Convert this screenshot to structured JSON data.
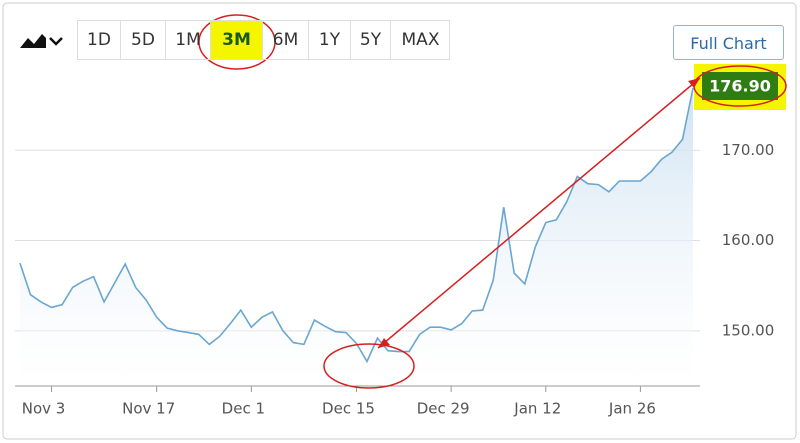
{
  "range_buttons": [
    "1D",
    "5D",
    "1M",
    "3M",
    "6M",
    "1Y",
    "5Y",
    "MAX"
  ],
  "full_chart_button": "Full Chart",
  "chart_data": {
    "type": "area",
    "categories": [
      null,
      null,
      null,
      "Nov 3",
      null,
      null,
      null,
      null,
      null,
      null,
      null,
      null,
      null,
      "Nov 17",
      null,
      null,
      null,
      null,
      null,
      null,
      null,
      null,
      "Dec 1",
      null,
      null,
      null,
      null,
      null,
      null,
      null,
      null,
      null,
      "Dec 15",
      null,
      null,
      null,
      null,
      null,
      null,
      null,
      null,
      "Dec 29",
      null,
      null,
      null,
      null,
      null,
      null,
      null,
      null,
      "Jan 12",
      null,
      null,
      null,
      null,
      null,
      null,
      null,
      null,
      "Jan 26",
      null,
      null,
      null,
      null,
      null
    ],
    "values": [
      157.5,
      154,
      153.2,
      152.6,
      152.9,
      154.8,
      155.5,
      156,
      153.2,
      155.3,
      157.4,
      154.8,
      153.4,
      151.5,
      150.3,
      150,
      149.8,
      149.6,
      148.5,
      149.4,
      150.8,
      152.3,
      150.4,
      151.5,
      152.1,
      150,
      148.7,
      148.5,
      151.2,
      150.5,
      149.9,
      149.8,
      148.6,
      146.6,
      149.2,
      147.8,
      147.7,
      147.7,
      149.6,
      150.4,
      150.4,
      150.1,
      150.8,
      152.2,
      152.3,
      155.6,
      163.7,
      156.4,
      155.2,
      159.3,
      162,
      162.3,
      164.3,
      167.1,
      166.3,
      166.2,
      165.4,
      166.6,
      166.6,
      166.6,
      167.6,
      169,
      169.8,
      171.2,
      176.9
    ],
    "value_labels": [
      null,
      null,
      null,
      null,
      null,
      null,
      null,
      null,
      null,
      null,
      null,
      null,
      null,
      null,
      null,
      null,
      null,
      null,
      null,
      null,
      null,
      null,
      null,
      null,
      null,
      null,
      null,
      null,
      null,
      null,
      null,
      null,
      null,
      null,
      null,
      null,
      null,
      null,
      null,
      null,
      null,
      null,
      null,
      null,
      null,
      null,
      null,
      null,
      null,
      null,
      null,
      null,
      null,
      null,
      null,
      null,
      null,
      null,
      null,
      null,
      null,
      null,
      null,
      null,
      "176.90"
    ],
    "color": "#6aa6cf",
    "ylim": [
      144,
      180
    ],
    "yticks": [
      {
        "value": 150,
        "label": "150.00"
      },
      {
        "value": 160,
        "label": "160.00"
      },
      {
        "value": 170,
        "label": "170.00"
      }
    ],
    "grid": true
  }
}
